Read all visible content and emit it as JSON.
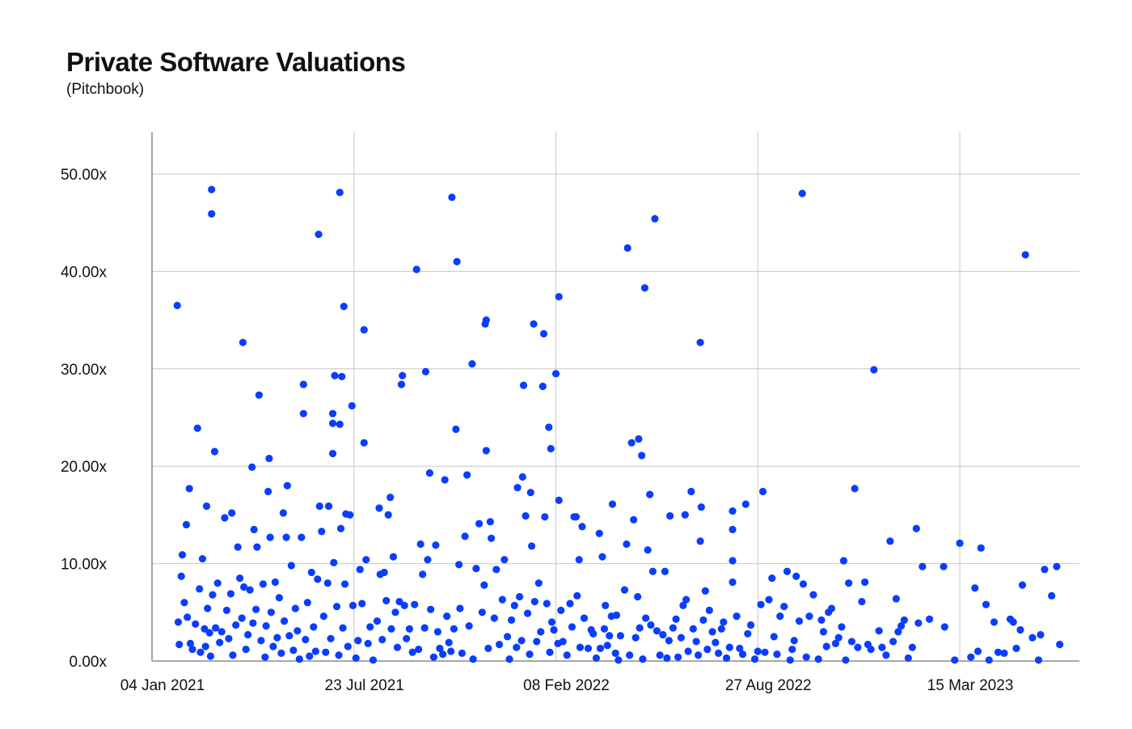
{
  "chart_data": {
    "type": "scatter",
    "title": "Private Software Valuations",
    "subtitle": "(Pitchbook)",
    "xlabel": "",
    "ylabel": "",
    "x_unit": "days since 04 Jan 2021",
    "xlim": [
      0,
      918
    ],
    "ylim": [
      0,
      54
    ],
    "grid": true,
    "x_ticks": [
      {
        "day": 0,
        "label": "04 Jan 2021"
      },
      {
        "day": 200,
        "label": "23 Jul 2021"
      },
      {
        "day": 400,
        "label": "08 Feb 2022"
      },
      {
        "day": 600,
        "label": "27 Aug 2022"
      },
      {
        "day": 800,
        "label": "15 Mar 2023"
      }
    ],
    "y_ticks": [
      {
        "value": 0,
        "label": "0.00x"
      },
      {
        "value": 10,
        "label": "10.00x"
      },
      {
        "value": 20,
        "label": "20.00x"
      },
      {
        "value": 30,
        "label": "30.00x"
      },
      {
        "value": 40,
        "label": "40.00x"
      },
      {
        "value": 50,
        "label": "50.00x"
      }
    ],
    "color": "#0b3dff",
    "points": [
      [
        25,
        36.5
      ],
      [
        59,
        48.4
      ],
      [
        59,
        45.9
      ],
      [
        62,
        21.5
      ],
      [
        45,
        23.9
      ],
      [
        37,
        17.7
      ],
      [
        34,
        14.0
      ],
      [
        30,
        10.9
      ],
      [
        54,
        15.9
      ],
      [
        50,
        10.5
      ],
      [
        90,
        32.7
      ],
      [
        106,
        27.3
      ],
      [
        99,
        19.9
      ],
      [
        116,
        20.8
      ],
      [
        115,
        17.4
      ],
      [
        134,
        18.0
      ],
      [
        72,
        14.7
      ],
      [
        79,
        15.2
      ],
      [
        101,
        13.5
      ],
      [
        130,
        15.2
      ],
      [
        150,
        28.4
      ],
      [
        150,
        25.4
      ],
      [
        165,
        43.8
      ],
      [
        186,
        48.1
      ],
      [
        190,
        36.4
      ],
      [
        181,
        29.3
      ],
      [
        188,
        29.2
      ],
      [
        179,
        25.4
      ],
      [
        179,
        24.4
      ],
      [
        186,
        24.3
      ],
      [
        179,
        21.3
      ],
      [
        198,
        26.2
      ],
      [
        210,
        34.0
      ],
      [
        210,
        22.4
      ],
      [
        262,
        40.2
      ],
      [
        248,
        29.3
      ],
      [
        247,
        28.4
      ],
      [
        271,
        29.7
      ],
      [
        297,
        47.6
      ],
      [
        302,
        41.0
      ],
      [
        301,
        23.8
      ],
      [
        317,
        30.5
      ],
      [
        331,
        35.0
      ],
      [
        330,
        34.6
      ],
      [
        331,
        21.6
      ],
      [
        312,
        19.1
      ],
      [
        290,
        18.6
      ],
      [
        275,
        19.3
      ],
      [
        236,
        16.8
      ],
      [
        225,
        15.7
      ],
      [
        175,
        15.9
      ],
      [
        166,
        15.9
      ],
      [
        192,
        15.1
      ],
      [
        368,
        28.3
      ],
      [
        378,
        34.6
      ],
      [
        388,
        33.6
      ],
      [
        387,
        28.2
      ],
      [
        403,
        37.4
      ],
      [
        400,
        29.5
      ],
      [
        393,
        24.0
      ],
      [
        395,
        21.8
      ],
      [
        367,
        18.9
      ],
      [
        362,
        17.8
      ],
      [
        375,
        17.3
      ],
      [
        403,
        16.5
      ],
      [
        418,
        14.8
      ],
      [
        471,
        42.4
      ],
      [
        498,
        45.4
      ],
      [
        488,
        38.3
      ],
      [
        482,
        22.8
      ],
      [
        475,
        22.4
      ],
      [
        485,
        21.1
      ],
      [
        493,
        17.1
      ],
      [
        543,
        32.7
      ],
      [
        644,
        48.0
      ],
      [
        605,
        17.4
      ],
      [
        588,
        16.1
      ],
      [
        575,
        15.4
      ],
      [
        534,
        17.4
      ],
      [
        544,
        15.8
      ],
      [
        715,
        29.9
      ],
      [
        696,
        17.7
      ],
      [
        865,
        41.7
      ],
      [
        800,
        12.1
      ],
      [
        821,
        11.6
      ],
      [
        784,
        9.7
      ],
      [
        896,
        9.7
      ],
      [
        884,
        9.4
      ],
      [
        731,
        12.3
      ],
      [
        757,
        13.6
      ],
      [
        685,
        10.3
      ],
      [
        575,
        13.5
      ],
      [
        575,
        10.3
      ],
      [
        543,
        12.3
      ],
      [
        443,
        13.1
      ],
      [
        456,
        16.1
      ],
      [
        513,
        14.9
      ],
      [
        528,
        15.0
      ],
      [
        862,
        7.8
      ],
      [
        891,
        6.7
      ],
      [
        815,
        7.5
      ],
      [
        826,
        5.8
      ],
      [
        899,
        1.7
      ],
      [
        26,
        4.0
      ],
      [
        27,
        1.7
      ],
      [
        29,
        8.7
      ],
      [
        32,
        6.0
      ],
      [
        35,
        4.5
      ],
      [
        38,
        1.8
      ],
      [
        40,
        1.2
      ],
      [
        43,
        3.8
      ],
      [
        47,
        7.4
      ],
      [
        48,
        0.9
      ],
      [
        52,
        3.3
      ],
      [
        53,
        1.5
      ],
      [
        55,
        5.4
      ],
      [
        57,
        2.9
      ],
      [
        58,
        0.5
      ],
      [
        60,
        6.8
      ],
      [
        63,
        3.4
      ],
      [
        65,
        8.0
      ],
      [
        67,
        1.9
      ],
      [
        69,
        3.0
      ],
      [
        74,
        5.2
      ],
      [
        76,
        2.3
      ],
      [
        78,
        6.9
      ],
      [
        80,
        0.6
      ],
      [
        83,
        3.7
      ],
      [
        85,
        11.7
      ],
      [
        87,
        8.5
      ],
      [
        89,
        4.4
      ],
      [
        91,
        7.6
      ],
      [
        93,
        1.2
      ],
      [
        95,
        2.7
      ],
      [
        97,
        7.3
      ],
      [
        100,
        3.9
      ],
      [
        103,
        5.3
      ],
      [
        104,
        11.7
      ],
      [
        108,
        2.1
      ],
      [
        110,
        7.9
      ],
      [
        112,
        0.4
      ],
      [
        113,
        3.6
      ],
      [
        117,
        12.7
      ],
      [
        118,
        5.0
      ],
      [
        120,
        1.5
      ],
      [
        122,
        8.1
      ],
      [
        124,
        2.4
      ],
      [
        126,
        6.5
      ],
      [
        128,
        0.8
      ],
      [
        131,
        4.1
      ],
      [
        133,
        12.7
      ],
      [
        136,
        2.6
      ],
      [
        138,
        9.8
      ],
      [
        140,
        1.1
      ],
      [
        142,
        5.4
      ],
      [
        144,
        3.1
      ],
      [
        146,
        0.2
      ],
      [
        148,
        12.7
      ],
      [
        152,
        2.2
      ],
      [
        154,
        6.0
      ],
      [
        156,
        0.5
      ],
      [
        158,
        9.1
      ],
      [
        160,
        3.5
      ],
      [
        162,
        1.0
      ],
      [
        164,
        8.4
      ],
      [
        168,
        13.3
      ],
      [
        170,
        4.6
      ],
      [
        172,
        0.9
      ],
      [
        174,
        8.0
      ],
      [
        177,
        2.3
      ],
      [
        180,
        10.1
      ],
      [
        183,
        5.6
      ],
      [
        185,
        0.6
      ],
      [
        187,
        13.6
      ],
      [
        189,
        3.4
      ],
      [
        191,
        7.9
      ],
      [
        194,
        1.5
      ],
      [
        196,
        15.0
      ],
      [
        199,
        5.7
      ],
      [
        202,
        0.3
      ],
      [
        204,
        2.1
      ],
      [
        206,
        9.4
      ],
      [
        208,
        5.9
      ],
      [
        212,
        10.4
      ],
      [
        214,
        1.8
      ],
      [
        216,
        3.5
      ],
      [
        219,
        0.1
      ],
      [
        223,
        4.1
      ],
      [
        226,
        8.9
      ],
      [
        228,
        2.2
      ],
      [
        230,
        9.1
      ],
      [
        232,
        6.2
      ],
      [
        234,
        15.0
      ],
      [
        237,
        3.3
      ],
      [
        239,
        10.7
      ],
      [
        241,
        5.0
      ],
      [
        243,
        1.4
      ],
      [
        245,
        6.1
      ],
      [
        250,
        5.7
      ],
      [
        252,
        2.3
      ],
      [
        255,
        3.3
      ],
      [
        258,
        0.9
      ],
      [
        260,
        5.8
      ],
      [
        264,
        1.2
      ],
      [
        266,
        12.0
      ],
      [
        268,
        8.9
      ],
      [
        270,
        3.4
      ],
      [
        273,
        10.4
      ],
      [
        276,
        5.3
      ],
      [
        279,
        0.4
      ],
      [
        281,
        11.9
      ],
      [
        283,
        3.0
      ],
      [
        285,
        1.3
      ],
      [
        288,
        0.7
      ],
      [
        292,
        4.6
      ],
      [
        294,
        1.9
      ],
      [
        296,
        1.0
      ],
      [
        299,
        3.3
      ],
      [
        304,
        9.9
      ],
      [
        305,
        5.4
      ],
      [
        307,
        0.8
      ],
      [
        310,
        12.8
      ],
      [
        314,
        3.6
      ],
      [
        318,
        0.2
      ],
      [
        321,
        9.5
      ],
      [
        324,
        14.1
      ],
      [
        327,
        5.0
      ],
      [
        329,
        7.8
      ],
      [
        333,
        1.3
      ],
      [
        335,
        14.3
      ],
      [
        336,
        12.6
      ],
      [
        339,
        4.4
      ],
      [
        341,
        9.4
      ],
      [
        344,
        1.7
      ],
      [
        347,
        6.3
      ],
      [
        349,
        10.4
      ],
      [
        352,
        2.5
      ],
      [
        354,
        0.2
      ],
      [
        356,
        4.2
      ],
      [
        359,
        5.7
      ],
      [
        361,
        1.4
      ],
      [
        364,
        6.6
      ],
      [
        366,
        2.1
      ],
      [
        370,
        14.9
      ],
      [
        372,
        4.9
      ],
      [
        374,
        0.7
      ],
      [
        376,
        11.8
      ],
      [
        379,
        6.1
      ],
      [
        381,
        2.0
      ],
      [
        383,
        8.0
      ],
      [
        385,
        3.0
      ],
      [
        389,
        14.8
      ],
      [
        391,
        5.9
      ],
      [
        394,
        0.9
      ],
      [
        396,
        4.0
      ],
      [
        398,
        3.2
      ],
      [
        402,
        1.8
      ],
      [
        405,
        5.2
      ],
      [
        407,
        2.0
      ],
      [
        411,
        0.6
      ],
      [
        414,
        5.9
      ],
      [
        416,
        3.5
      ],
      [
        420,
        14.8
      ],
      [
        421,
        6.7
      ],
      [
        423,
        10.4
      ],
      [
        424,
        1.4
      ],
      [
        426,
        13.8
      ],
      [
        428,
        4.4
      ],
      [
        432,
        1.3
      ],
      [
        435,
        3.2
      ],
      [
        437,
        2.8
      ],
      [
        440,
        0.3
      ],
      [
        444,
        1.3
      ],
      [
        446,
        10.7
      ],
      [
        448,
        3.3
      ],
      [
        449,
        5.7
      ],
      [
        451,
        1.6
      ],
      [
        453,
        2.6
      ],
      [
        455,
        4.6
      ],
      [
        459,
        0.8
      ],
      [
        460,
        4.7
      ],
      [
        462,
        0.1
      ],
      [
        464,
        2.6
      ],
      [
        468,
        7.3
      ],
      [
        470,
        12.0
      ],
      [
        473,
        0.6
      ],
      [
        477,
        14.5
      ],
      [
        479,
        2.4
      ],
      [
        481,
        6.6
      ],
      [
        483,
        3.4
      ],
      [
        486,
        0.2
      ],
      [
        489,
        4.4
      ],
      [
        491,
        11.4
      ],
      [
        494,
        3.7
      ],
      [
        496,
        9.2
      ],
      [
        500,
        3.1
      ],
      [
        503,
        0.6
      ],
      [
        506,
        2.7
      ],
      [
        508,
        9.2
      ],
      [
        510,
        0.3
      ],
      [
        512,
        2.1
      ],
      [
        516,
        3.4
      ],
      [
        519,
        4.3
      ],
      [
        521,
        0.4
      ],
      [
        524,
        2.4
      ],
      [
        526,
        5.7
      ],
      [
        529,
        6.3
      ],
      [
        531,
        1.0
      ],
      [
        536,
        3.3
      ],
      [
        539,
        2.0
      ],
      [
        541,
        0.6
      ],
      [
        546,
        4.2
      ],
      [
        548,
        7.2
      ],
      [
        550,
        1.2
      ],
      [
        552,
        5.2
      ],
      [
        555,
        3.0
      ],
      [
        558,
        1.9
      ],
      [
        561,
        0.8
      ],
      [
        564,
        3.3
      ],
      [
        566,
        4.0
      ],
      [
        569,
        0.3
      ],
      [
        572,
        1.4
      ],
      [
        575,
        8.1
      ],
      [
        579,
        4.6
      ],
      [
        582,
        1.3
      ],
      [
        585,
        0.7
      ],
      [
        590,
        2.8
      ],
      [
        593,
        3.7
      ],
      [
        597,
        0.2
      ],
      [
        600,
        1.0
      ],
      [
        603,
        5.8
      ],
      [
        607,
        0.9
      ],
      [
        611,
        6.3
      ],
      [
        614,
        8.5
      ],
      [
        616,
        2.5
      ],
      [
        619,
        0.7
      ],
      [
        622,
        4.6
      ],
      [
        626,
        5.6
      ],
      [
        629,
        9.2
      ],
      [
        632,
        0.1
      ],
      [
        634,
        1.2
      ],
      [
        636,
        2.1
      ],
      [
        638,
        8.7
      ],
      [
        641,
        4.1
      ],
      [
        645,
        7.9
      ],
      [
        648,
        0.4
      ],
      [
        651,
        4.6
      ],
      [
        655,
        6.8
      ],
      [
        660,
        0.2
      ],
      [
        663,
        4.2
      ],
      [
        665,
        3.0
      ],
      [
        668,
        1.5
      ],
      [
        670,
        5.0
      ],
      [
        673,
        5.4
      ],
      [
        677,
        1.8
      ],
      [
        680,
        2.4
      ],
      [
        683,
        3.5
      ],
      [
        687,
        0.1
      ],
      [
        690,
        8.0
      ],
      [
        693,
        2.0
      ],
      [
        699,
        1.4
      ],
      [
        703,
        6.1
      ],
      [
        706,
        8.1
      ],
      [
        709,
        1.7
      ],
      [
        712,
        1.2
      ],
      [
        720,
        3.1
      ],
      [
        723,
        1.4
      ],
      [
        727,
        0.6
      ],
      [
        734,
        2.0
      ],
      [
        737,
        6.4
      ],
      [
        739,
        3.0
      ],
      [
        742,
        3.6
      ],
      [
        745,
        4.2
      ],
      [
        749,
        0.3
      ],
      [
        753,
        1.4
      ],
      [
        759,
        3.9
      ],
      [
        763,
        9.7
      ],
      [
        770,
        4.3
      ],
      [
        785,
        3.5
      ],
      [
        795,
        0.1
      ],
      [
        811,
        0.4
      ],
      [
        818,
        1.0
      ],
      [
        829,
        0.1
      ],
      [
        834,
        4.0
      ],
      [
        838,
        0.9
      ],
      [
        844,
        0.8
      ],
      [
        850,
        4.3
      ],
      [
        853,
        4.0
      ],
      [
        856,
        1.3
      ],
      [
        860,
        3.2
      ],
      [
        872,
        2.4
      ],
      [
        878,
        0.1
      ],
      [
        880,
        2.7
      ]
    ]
  }
}
